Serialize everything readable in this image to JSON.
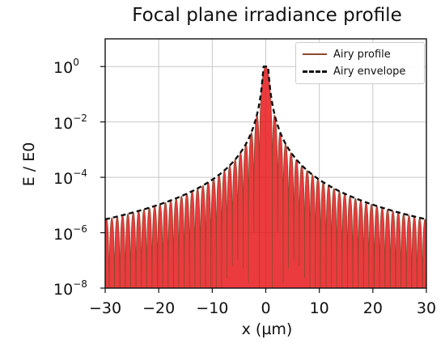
{
  "chart_data": {
    "type": "line",
    "title": "Focal plane irradiance profile",
    "xlabel": "x (µm)",
    "ylabel": "E / E0",
    "xlim": [
      -30,
      30
    ],
    "ylim": [
      1e-08,
      10
    ],
    "yscale": "log",
    "grid": true,
    "legend_position": "top-right",
    "xticks": [
      -30,
      -20,
      -10,
      0,
      10,
      20,
      30
    ],
    "yticks": [
      {
        "value": 1,
        "mantissa": "10",
        "exponent": "0"
      },
      {
        "value": 0.01,
        "mantissa": "10",
        "exponent": "−2"
      },
      {
        "value": 0.0001,
        "mantissa": "10",
        "exponent": "−4"
      },
      {
        "value": 1e-06,
        "mantissa": "10",
        "exponent": "−6"
      },
      {
        "value": 1e-08,
        "mantissa": "10",
        "exponent": "−8"
      }
    ],
    "series": [
      {
        "name": "Airy profile",
        "style": "solid",
        "color": "#8b4a2e",
        "fill": "#e8191c",
        "description": "Airy irradiance pattern with first zero near 1.22 µm; peaks follow the envelope"
      },
      {
        "name": "Airy envelope",
        "style": "dashed",
        "color": "#111111",
        "x": [
          -30,
          -20,
          -10,
          -5,
          -2,
          -1,
          0,
          1,
          2,
          5,
          10,
          20,
          30
        ],
        "y": [
          3e-06,
          1e-05,
          8e-05,
          0.0006,
          0.009,
          0.06,
          1,
          0.06,
          0.009,
          0.0006,
          8e-05,
          1e-05,
          3e-06
        ]
      }
    ]
  }
}
